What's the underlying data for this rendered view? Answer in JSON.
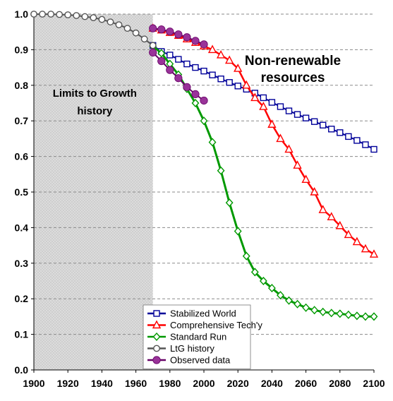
{
  "chart_data": {
    "type": "line",
    "title": "Non-renewable resources",
    "title_lines": [
      "Non-renewable",
      "resources"
    ],
    "annotation": {
      "lines": [
        "Limits to Growth",
        "history"
      ],
      "x_range": [
        1900,
        1970
      ]
    },
    "xlabel": "",
    "ylabel": "",
    "xlim": [
      1900,
      2100
    ],
    "ylim": [
      0,
      1.0
    ],
    "xticks": [
      1900,
      1920,
      1940,
      1960,
      1980,
      2000,
      2020,
      2040,
      2060,
      2080,
      2100
    ],
    "yticks": [
      0,
      0.1,
      0.2,
      0.3,
      0.4,
      0.5,
      0.6,
      0.7,
      0.8,
      0.9,
      1.0
    ],
    "ytick_labels": [
      "0.0",
      "0.1",
      "0.2",
      "0.3",
      "0.4",
      "0.5",
      "0.6",
      "0.7",
      "0.8",
      "0.9",
      "1.0"
    ],
    "grid": "horizontal-dashed",
    "legend_position": "bottom-center",
    "series": [
      {
        "name": "Stabilized World",
        "color": "#000099",
        "marker": "square",
        "line_width": 2,
        "x": [
          1970,
          1975,
          1980,
          1985,
          1990,
          1995,
          2000,
          2005,
          2010,
          2015,
          2020,
          2025,
          2030,
          2035,
          2040,
          2045,
          2050,
          2055,
          2060,
          2065,
          2070,
          2075,
          2080,
          2085,
          2090,
          2095,
          2100
        ],
        "y": [
          0.912,
          0.895,
          0.885,
          0.873,
          0.86,
          0.85,
          0.84,
          0.829,
          0.818,
          0.808,
          0.798,
          0.789,
          0.778,
          0.765,
          0.752,
          0.74,
          0.728,
          0.718,
          0.708,
          0.698,
          0.688,
          0.677,
          0.667,
          0.656,
          0.645,
          0.633,
          0.62
        ]
      },
      {
        "name": "Comprehensive Tech'y",
        "color": "#ff0000",
        "marker": "triangle",
        "line_width": 2.5,
        "x": [
          1970,
          1975,
          1980,
          1985,
          1990,
          1995,
          2000,
          2005,
          2010,
          2015,
          2020,
          2025,
          2030,
          2035,
          2040,
          2045,
          2050,
          2055,
          2060,
          2065,
          2070,
          2075,
          2080,
          2085,
          2090,
          2095,
          2100
        ],
        "y": [
          0.96,
          0.955,
          0.948,
          0.94,
          0.93,
          0.92,
          0.91,
          0.9,
          0.885,
          0.87,
          0.847,
          0.8,
          0.765,
          0.74,
          0.69,
          0.65,
          0.62,
          0.575,
          0.535,
          0.5,
          0.45,
          0.43,
          0.405,
          0.38,
          0.36,
          0.34,
          0.325
        ]
      },
      {
        "name": "Standard Run",
        "color": "#009900",
        "marker": "diamond",
        "line_width": 3,
        "x": [
          1970,
          1975,
          1980,
          1985,
          1990,
          1995,
          2000,
          2005,
          2010,
          2015,
          2020,
          2025,
          2030,
          2035,
          2040,
          2045,
          2050,
          2055,
          2060,
          2065,
          2070,
          2075,
          2080,
          2085,
          2090,
          2095,
          2100
        ],
        "y": [
          0.91,
          0.89,
          0.86,
          0.83,
          0.79,
          0.75,
          0.7,
          0.64,
          0.56,
          0.47,
          0.39,
          0.32,
          0.275,
          0.25,
          0.23,
          0.21,
          0.195,
          0.185,
          0.175,
          0.168,
          0.163,
          0.16,
          0.158,
          0.155,
          0.152,
          0.15,
          0.15
        ]
      },
      {
        "name": "LtG history",
        "color": "#555555",
        "marker": "circle-open",
        "line_width": 2,
        "x": [
          1900,
          1905,
          1910,
          1915,
          1920,
          1925,
          1930,
          1935,
          1940,
          1945,
          1950,
          1955,
          1960,
          1965,
          1970
        ],
        "y": [
          1.0,
          1.0,
          1.0,
          0.999,
          0.998,
          0.996,
          0.993,
          0.99,
          0.985,
          0.978,
          0.97,
          0.96,
          0.947,
          0.93,
          0.912
        ]
      },
      {
        "name": "Observed data",
        "color": "#660066",
        "marker_fill": "#993399",
        "marker": "circle-filled",
        "line_width": 2,
        "x": [
          1970,
          1975,
          1980,
          1985,
          1990,
          1995,
          2000
        ],
        "y": [
          0.892,
          0.868,
          0.843,
          0.82,
          0.795,
          0.775,
          0.757
        ]
      },
      {
        "name": "",
        "color": "#660066",
        "marker_fill": "#993399",
        "marker": "circle-filled",
        "line_width": 2,
        "x": [
          1970,
          1975,
          1980,
          1985,
          1990,
          1995,
          2000
        ],
        "y": [
          0.96,
          0.957,
          0.951,
          0.943,
          0.935,
          0.925,
          0.915
        ]
      }
    ]
  }
}
